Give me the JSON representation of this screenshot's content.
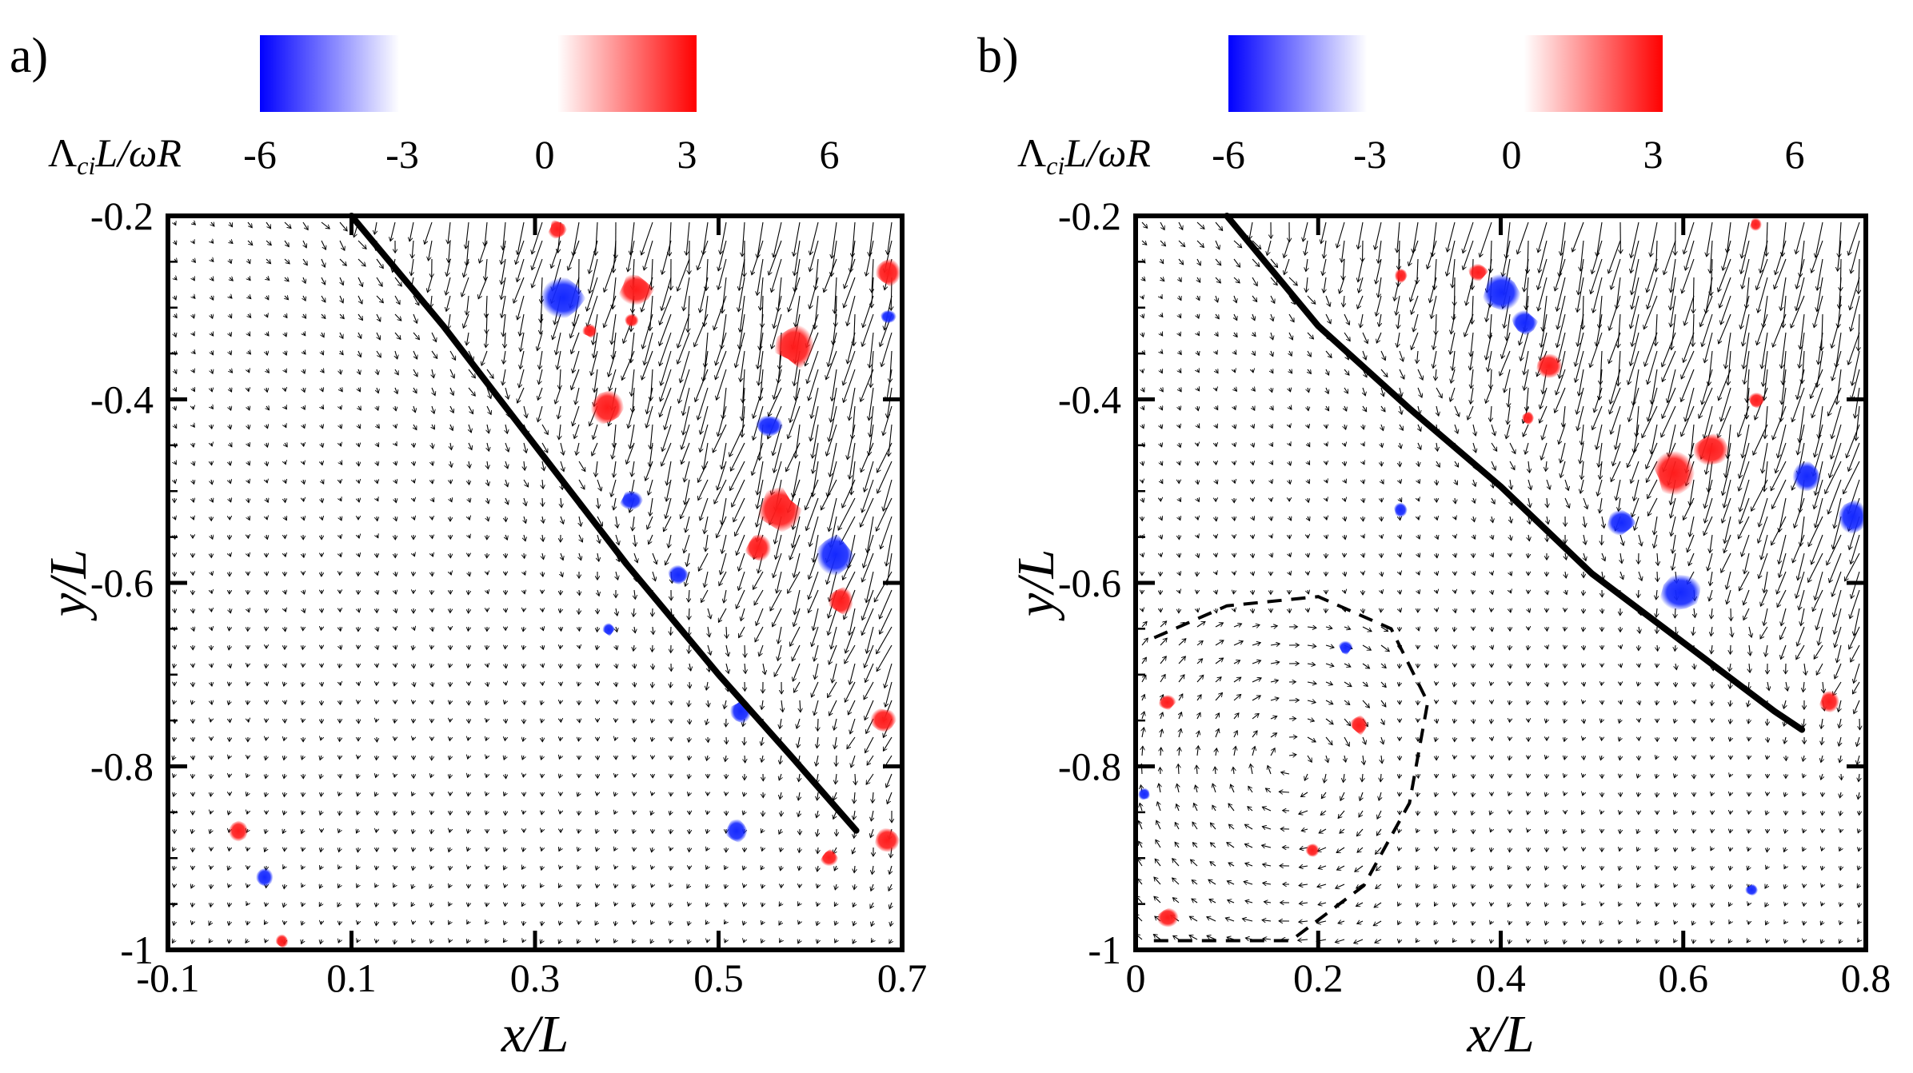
{
  "chart_data": [
    {
      "type": "scatter",
      "panel_label": "a)",
      "xlabel": "x/L",
      "ylabel": "y/L",
      "xlim": [
        -0.1,
        0.7
      ],
      "ylim": [
        -1,
        -0.2
      ],
      "xticks": [
        "-0.1",
        "0.1",
        "0.3",
        "0.5",
        "0.7"
      ],
      "xtick_values": [
        -0.1,
        0.1,
        0.3,
        0.5,
        0.7
      ],
      "yticks": [
        "-0.2",
        "-0.4",
        "-0.6",
        "-0.8",
        "-1"
      ],
      "ytick_values": [
        -0.2,
        -0.4,
        -0.6,
        -0.8,
        -1.0
      ],
      "colorbar": {
        "label_main": "Λ",
        "label_sub": "ci",
        "label_rest": "L/ωR",
        "ticks": [
          "-6",
          "-3",
          "0",
          "3",
          "6"
        ],
        "negative_color": "#0000ff",
        "positive_color": "#ff0000"
      },
      "solid_line": [
        [
          0.1,
          -0.2
        ],
        [
          0.2,
          -0.32
        ],
        [
          0.3,
          -0.45
        ],
        [
          0.4,
          -0.58
        ],
        [
          0.5,
          -0.7
        ],
        [
          0.58,
          -0.79
        ],
        [
          0.65,
          -0.87
        ]
      ],
      "dashed_line": [],
      "vortices": [
        {
          "x": 0.33,
          "y": -0.29,
          "sign": -1,
          "size": 0.025
        },
        {
          "x": 0.41,
          "y": -0.28,
          "sign": 1,
          "size": 0.018
        },
        {
          "x": 0.585,
          "y": -0.34,
          "sign": 1,
          "size": 0.024
        },
        {
          "x": 0.685,
          "y": -0.26,
          "sign": 1,
          "size": 0.016
        },
        {
          "x": 0.325,
          "y": -0.215,
          "sign": 1,
          "size": 0.011
        },
        {
          "x": 0.38,
          "y": -0.41,
          "sign": 1,
          "size": 0.018
        },
        {
          "x": 0.555,
          "y": -0.43,
          "sign": -1,
          "size": 0.014
        },
        {
          "x": 0.565,
          "y": -0.52,
          "sign": 1,
          "size": 0.022
        },
        {
          "x": 0.545,
          "y": -0.56,
          "sign": 1,
          "size": 0.015
        },
        {
          "x": 0.625,
          "y": -0.57,
          "sign": -1,
          "size": 0.02
        },
        {
          "x": 0.635,
          "y": -0.62,
          "sign": 1,
          "size": 0.014
        },
        {
          "x": 0.405,
          "y": -0.51,
          "sign": -1,
          "size": 0.012
        },
        {
          "x": 0.455,
          "y": -0.59,
          "sign": -1,
          "size": 0.012
        },
        {
          "x": 0.525,
          "y": -0.74,
          "sign": -1,
          "size": 0.013
        },
        {
          "x": 0.68,
          "y": -0.75,
          "sign": 1,
          "size": 0.014
        },
        {
          "x": 0.685,
          "y": -0.88,
          "sign": 1,
          "size": 0.014
        },
        {
          "x": 0.52,
          "y": -0.87,
          "sign": -1,
          "size": 0.012
        },
        {
          "x": 0.62,
          "y": -0.9,
          "sign": 1,
          "size": 0.009
        },
        {
          "x": 0.405,
          "y": -0.315,
          "sign": 1,
          "size": 0.008
        },
        {
          "x": 0.36,
          "y": -0.325,
          "sign": 1,
          "size": 0.008
        },
        {
          "x": 0.38,
          "y": -0.65,
          "sign": -1,
          "size": 0.007
        },
        {
          "x": -0.025,
          "y": -0.87,
          "sign": 1,
          "size": 0.011
        },
        {
          "x": 0.005,
          "y": -0.92,
          "sign": -1,
          "size": 0.011
        },
        {
          "x": 0.025,
          "y": -0.99,
          "sign": 1,
          "size": 0.007
        },
        {
          "x": 0.685,
          "y": -0.31,
          "sign": -1,
          "size": 0.008
        }
      ],
      "flow": {
        "x0": 0.1,
        "y0": -0.2,
        "cx": 0.52,
        "cy": -0.65
      }
    },
    {
      "type": "scatter",
      "panel_label": "b)",
      "xlabel": "x/L",
      "ylabel": "y/L",
      "xlim": [
        0,
        0.8
      ],
      "ylim": [
        -1,
        -0.2
      ],
      "xticks": [
        "0",
        "0.2",
        "0.4",
        "0.6",
        "0.8"
      ],
      "xtick_values": [
        0,
        0.2,
        0.4,
        0.6,
        0.8
      ],
      "yticks": [
        "-0.2",
        "-0.4",
        "-0.6",
        "-0.8",
        "-1"
      ],
      "ytick_values": [
        -0.2,
        -0.4,
        -0.6,
        -0.8,
        -1.0
      ],
      "colorbar": {
        "label_main": "Λ",
        "label_sub": "ci",
        "label_rest": "L/ωR",
        "ticks": [
          "-6",
          "-3",
          "0",
          "3",
          "6"
        ],
        "negative_color": "#0000ff",
        "positive_color": "#ff0000"
      },
      "solid_line": [
        [
          0.1,
          -0.2
        ],
        [
          0.2,
          -0.32
        ],
        [
          0.3,
          -0.41
        ],
        [
          0.4,
          -0.495
        ],
        [
          0.5,
          -0.59
        ],
        [
          0.6,
          -0.665
        ],
        [
          0.7,
          -0.74
        ],
        [
          0.73,
          -0.76
        ]
      ],
      "dashed_line": [
        [
          0.02,
          -0.99
        ],
        [
          0.17,
          -0.99
        ],
        [
          0.25,
          -0.93
        ],
        [
          0.3,
          -0.84
        ],
        [
          0.32,
          -0.73
        ],
        [
          0.28,
          -0.65
        ],
        [
          0.2,
          -0.615
        ],
        [
          0.1,
          -0.625
        ],
        [
          0.02,
          -0.66
        ]
      ],
      "vortices": [
        {
          "x": 0.4,
          "y": -0.285,
          "sign": -1,
          "size": 0.022
        },
        {
          "x": 0.425,
          "y": -0.315,
          "sign": -1,
          "size": 0.014
        },
        {
          "x": 0.375,
          "y": -0.26,
          "sign": 1,
          "size": 0.01
        },
        {
          "x": 0.455,
          "y": -0.365,
          "sign": 1,
          "size": 0.015
        },
        {
          "x": 0.59,
          "y": -0.48,
          "sign": 1,
          "size": 0.022
        },
        {
          "x": 0.63,
          "y": -0.455,
          "sign": 1,
          "size": 0.018
        },
        {
          "x": 0.6,
          "y": -0.61,
          "sign": -1,
          "size": 0.024
        },
        {
          "x": 0.53,
          "y": -0.535,
          "sign": -1,
          "size": 0.016
        },
        {
          "x": 0.735,
          "y": -0.485,
          "sign": -1,
          "size": 0.017
        },
        {
          "x": 0.785,
          "y": -0.53,
          "sign": -1,
          "size": 0.019
        },
        {
          "x": 0.68,
          "y": -0.4,
          "sign": 1,
          "size": 0.009
        },
        {
          "x": 0.29,
          "y": -0.265,
          "sign": 1,
          "size": 0.008
        },
        {
          "x": 0.29,
          "y": -0.52,
          "sign": -1,
          "size": 0.008
        },
        {
          "x": 0.23,
          "y": -0.67,
          "sign": -1,
          "size": 0.008
        },
        {
          "x": 0.245,
          "y": -0.755,
          "sign": 1,
          "size": 0.01
        },
        {
          "x": 0.195,
          "y": -0.89,
          "sign": 1,
          "size": 0.008
        },
        {
          "x": 0.035,
          "y": -0.73,
          "sign": 1,
          "size": 0.009
        },
        {
          "x": 0.035,
          "y": -0.965,
          "sign": 1,
          "size": 0.011
        },
        {
          "x": 0.01,
          "y": -0.83,
          "sign": -1,
          "size": 0.007
        },
        {
          "x": 0.76,
          "y": -0.73,
          "sign": 1,
          "size": 0.012
        },
        {
          "x": 0.68,
          "y": -0.21,
          "sign": 1,
          "size": 0.008
        },
        {
          "x": 0.675,
          "y": -0.935,
          "sign": -1,
          "size": 0.007
        },
        {
          "x": 0.43,
          "y": -0.42,
          "sign": 1,
          "size": 0.007
        }
      ],
      "flow": {
        "x0": 0.1,
        "y0": -0.2,
        "cx": 0.62,
        "cy": -0.6
      }
    }
  ]
}
